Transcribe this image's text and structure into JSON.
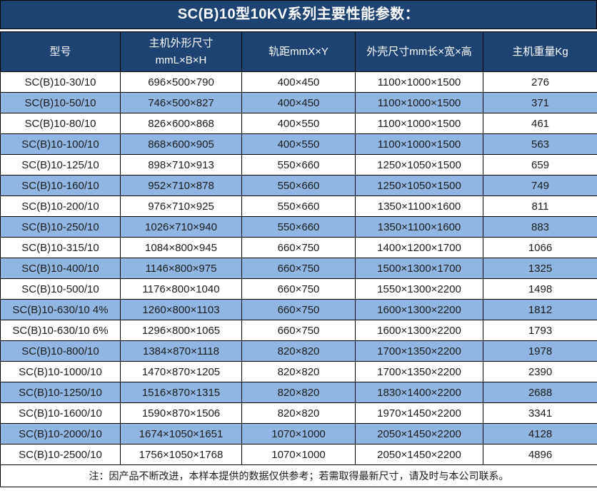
{
  "title": "SC(B)10型10KV系列主要性能参数：",
  "colors": {
    "header_bg": "#1C4372",
    "stripe_bg": "#90B7E3",
    "border": "#000000"
  },
  "table": {
    "columns": [
      {
        "label": "型号"
      },
      {
        "label": "主机外形尺寸",
        "sublabel": "mmL×B×H"
      },
      {
        "label": "轨距mmX×Y"
      },
      {
        "label": "外壳尺寸mm长×宽×高"
      },
      {
        "label": "主机重量Kg"
      }
    ],
    "rows": [
      [
        "SC(B)10-30/10",
        "696×500×790",
        "400×450",
        "1100×1000×1500",
        "276"
      ],
      [
        "SC(B)10-50/10",
        "746×500×827",
        "400×450",
        "1100×1000×1500",
        "371"
      ],
      [
        "SC(B)10-80/10",
        "826×600×868",
        "400×550",
        "1100×1000×1500",
        "461"
      ],
      [
        "SC(B)10-100/10",
        "868×600×905",
        "400×550",
        "1100×1000×1500",
        "563"
      ],
      [
        "SC(B)10-125/10",
        "898×710×913",
        "550×660",
        "1250×1050×1500",
        "659"
      ],
      [
        "SC(B)10-160/10",
        "952×710×878",
        "550×660",
        "1250×1050×1500",
        "749"
      ],
      [
        "SC(B)10-200/10",
        "976×710×925",
        "550×660",
        "1350×1100×1600",
        "811"
      ],
      [
        "SC(B)10-250/10",
        "1026×710×940",
        "550×660",
        "1350×1100×1600",
        "883"
      ],
      [
        "SC(B)10-315/10",
        "1084×800×945",
        "660×750",
        "1400×1200×1700",
        "1066"
      ],
      [
        "SC(B)10-400/10",
        "1146×800×975",
        "660×750",
        "1500×1300×1700",
        "1325"
      ],
      [
        "SC(B)10-500/10",
        "1176×800×1040",
        "660×750",
        "1550×1300×2200",
        "1498"
      ],
      [
        "SC(B)10-630/10 4%",
        "1260×800×1103",
        "660×750",
        "1600×1300×2200",
        "1812"
      ],
      [
        "SC(B)10-630/10 6%",
        "1296×800×1065",
        "660×750",
        "1600×1300×2200",
        "1793"
      ],
      [
        "SC(B)10-800/10",
        "1384×870×1118",
        "820×820",
        "1700×1350×2200",
        "1978"
      ],
      [
        "SC(B)10-1000/10",
        "1470×870×1205",
        "820×820",
        "1700×1350×2200",
        "2390"
      ],
      [
        "SC(B)10-1250/10",
        "1516×870×1315",
        "820×820",
        "1830×1400×2200",
        "2688"
      ],
      [
        "SC(B)10-1600/10",
        "1590×870×1506",
        "820×820",
        "1970×1450×2200",
        "3341"
      ],
      [
        "SC(B)10-2000/10",
        "1674×1050×1651",
        "1070×1000",
        "2050×1450×2200",
        "4128"
      ],
      [
        "SC(B)10-2500/10",
        "1756×1050×1768",
        "1070×1000",
        "2050×1450×2200",
        "4896"
      ]
    ]
  },
  "note": "注：因产品不断改进，本样本提供的数据仅供参考；若需取得最新尺寸，请及时与本公司联系。"
}
